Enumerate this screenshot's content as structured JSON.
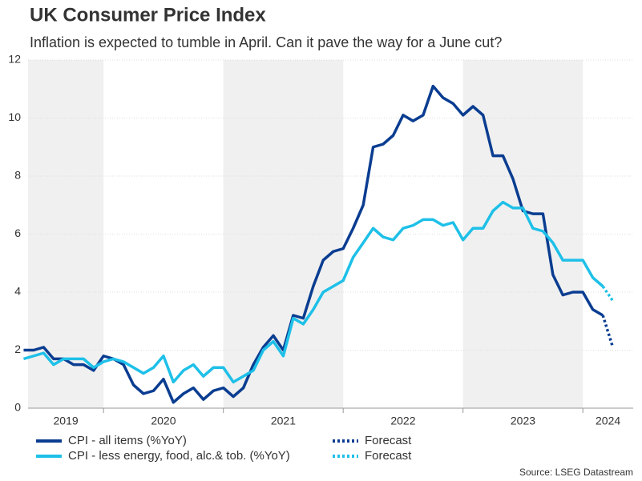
{
  "chart_data": {
    "type": "line",
    "title": "UK Consumer Price Index",
    "subtitle": "Inflation is expected to tumble in April. Can it pave the way for a June cut?",
    "source": "Source: LSEG Datastream",
    "xlim": [
      2019.37,
      2024.42
    ],
    "xticks": [
      {
        "value": 2019,
        "label": "2019"
      },
      {
        "value": 2020,
        "label": "2020"
      },
      {
        "value": 2021,
        "label": "2021"
      },
      {
        "value": 2022,
        "label": "2022"
      },
      {
        "value": 2023,
        "label": "2023"
      },
      {
        "value": 2024,
        "label": "2024"
      }
    ],
    "ylim": [
      0,
      12
    ],
    "yticks": [
      0,
      2,
      4,
      6,
      8,
      10,
      12
    ],
    "grid": true,
    "shade_color": "#f0f0f0",
    "series": [
      {
        "name": "CPI - all items (%YoY)",
        "color": "#0a3d91",
        "dash": false,
        "x": [
          2019.333,
          2019.417,
          2019.5,
          2019.583,
          2019.667,
          2019.75,
          2019.833,
          2019.917,
          2020,
          2020.083,
          2020.167,
          2020.25,
          2020.333,
          2020.417,
          2020.5,
          2020.583,
          2020.667,
          2020.75,
          2020.833,
          2020.917,
          2021,
          2021.083,
          2021.167,
          2021.25,
          2021.333,
          2021.417,
          2021.5,
          2021.583,
          2021.667,
          2021.75,
          2021.833,
          2021.917,
          2022,
          2022.083,
          2022.167,
          2022.25,
          2022.333,
          2022.417,
          2022.5,
          2022.583,
          2022.667,
          2022.75,
          2022.833,
          2022.917,
          2023,
          2023.083,
          2023.167,
          2023.25,
          2023.333,
          2023.417,
          2023.5,
          2023.583,
          2023.667,
          2023.75,
          2023.833,
          2023.917,
          2024,
          2024.083,
          2024.167
        ],
        "values": [
          2.0,
          2.0,
          2.1,
          1.7,
          1.7,
          1.5,
          1.5,
          1.3,
          1.8,
          1.7,
          1.5,
          0.8,
          0.5,
          0.6,
          1.0,
          0.2,
          0.5,
          0.7,
          0.3,
          0.6,
          0.7,
          0.4,
          0.7,
          1.5,
          2.1,
          2.5,
          2.0,
          3.2,
          3.1,
          4.2,
          5.1,
          5.4,
          5.5,
          6.2,
          7.0,
          9.0,
          9.1,
          9.4,
          10.1,
          9.9,
          10.1,
          11.1,
          10.7,
          10.5,
          10.1,
          10.4,
          10.1,
          8.7,
          8.7,
          7.9,
          6.8,
          6.7,
          6.7,
          4.6,
          3.9,
          4.0,
          4.0,
          3.4,
          3.2
        ]
      },
      {
        "name": "CPI - less energy, food, alc.& tob. (%YoY)",
        "color": "#1ec0e8",
        "dash": false,
        "x": [
          2019.333,
          2019.417,
          2019.5,
          2019.583,
          2019.667,
          2019.75,
          2019.833,
          2019.917,
          2020,
          2020.083,
          2020.167,
          2020.25,
          2020.333,
          2020.417,
          2020.5,
          2020.583,
          2020.667,
          2020.75,
          2020.833,
          2020.917,
          2021,
          2021.083,
          2021.167,
          2021.25,
          2021.333,
          2021.417,
          2021.5,
          2021.583,
          2021.667,
          2021.75,
          2021.833,
          2021.917,
          2022,
          2022.083,
          2022.167,
          2022.25,
          2022.333,
          2022.417,
          2022.5,
          2022.583,
          2022.667,
          2022.75,
          2022.833,
          2022.917,
          2023,
          2023.083,
          2023.167,
          2023.25,
          2023.333,
          2023.417,
          2023.5,
          2023.583,
          2023.667,
          2023.75,
          2023.833,
          2023.917,
          2024,
          2024.083,
          2024.167
        ],
        "values": [
          1.7,
          1.8,
          1.9,
          1.5,
          1.7,
          1.7,
          1.7,
          1.4,
          1.6,
          1.7,
          1.6,
          1.4,
          1.2,
          1.4,
          1.8,
          0.9,
          1.3,
          1.5,
          1.1,
          1.4,
          1.4,
          0.9,
          1.1,
          1.3,
          2.0,
          2.3,
          1.8,
          3.1,
          2.9,
          3.4,
          4.0,
          4.2,
          4.4,
          5.2,
          5.7,
          6.2,
          5.9,
          5.8,
          6.2,
          6.3,
          6.5,
          6.5,
          6.3,
          6.4,
          5.8,
          6.2,
          6.2,
          6.8,
          7.1,
          6.9,
          6.9,
          6.2,
          6.1,
          5.7,
          5.1,
          5.1,
          5.1,
          4.5,
          4.2
        ]
      },
      {
        "name": "Forecast",
        "color": "#0a3d91",
        "dash": true,
        "x": [
          2024.167,
          2024.25
        ],
        "values": [
          3.2,
          2.1
        ]
      },
      {
        "name": "Forecast",
        "color": "#1ec0e8",
        "dash": true,
        "x": [
          2024.167,
          2024.25
        ],
        "values": [
          4.2,
          3.7
        ]
      }
    ]
  }
}
